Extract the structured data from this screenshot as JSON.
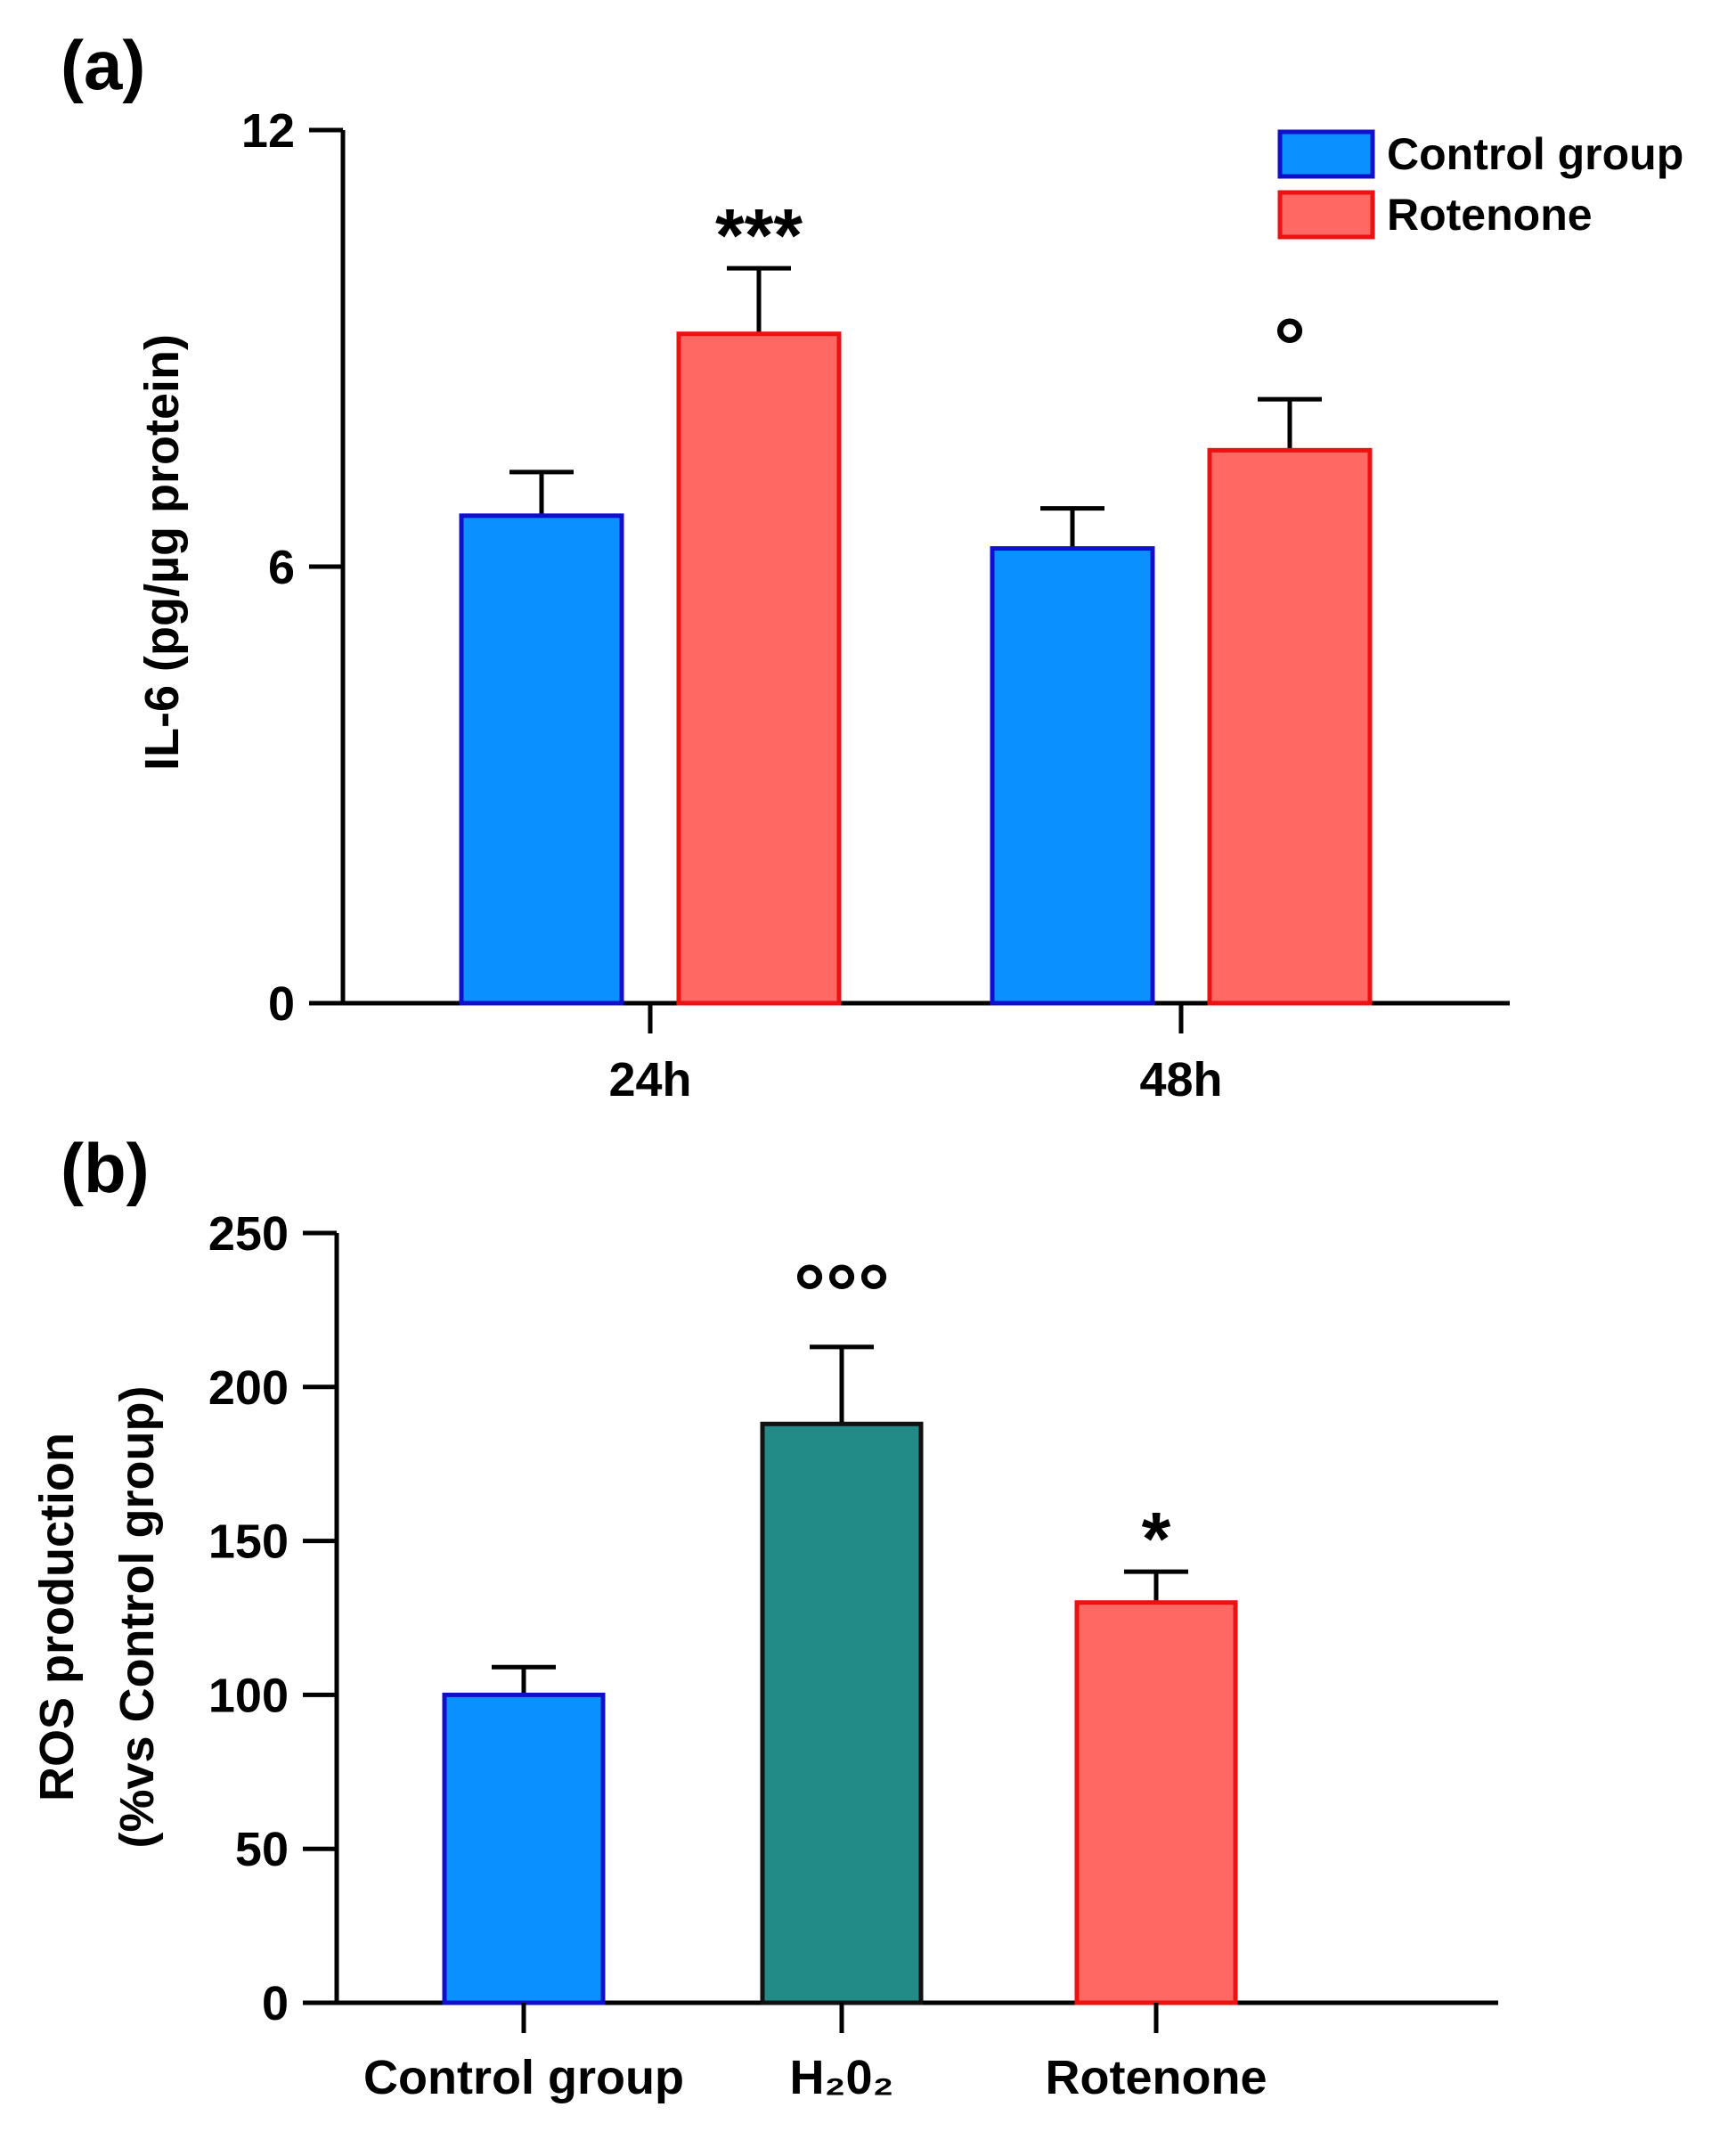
{
  "chart_data": [
    {
      "panel": "(a)",
      "type": "bar",
      "title": "",
      "xlabel": "",
      "ylabel": "IL-6 (pg/µg protein)",
      "ylim": [
        0,
        12
      ],
      "yticks": [
        "0",
        "6",
        "12"
      ],
      "categories": [
        "24h",
        "48h"
      ],
      "legend_position": "top-right",
      "series": [
        {
          "name": "Control group",
          "values": [
            6.7,
            6.25
          ],
          "errors": [
            0.6,
            0.55
          ],
          "fill": "#0a90ff",
          "stroke": "#1010cc"
        },
        {
          "name": "Rotenone",
          "values": [
            9.2,
            7.6
          ],
          "errors": [
            0.9,
            0.7
          ],
          "fill": "#ff6863",
          "stroke": "#ee1111"
        }
      ],
      "annotations": [
        {
          "category": 0,
          "series": 1,
          "text": "***"
        },
        {
          "category": 1,
          "series": 1,
          "text": "°"
        }
      ]
    },
    {
      "panel": "(b)",
      "type": "bar",
      "title": "",
      "xlabel": "",
      "ylabel": "ROS production",
      "ylabel2": "(%vs Control group)",
      "ylim": [
        0,
        250
      ],
      "yticks": [
        "0",
        "50",
        "100",
        "150",
        "200",
        "250"
      ],
      "categories": [
        "Control group",
        "H₂0₂",
        "Rotenone"
      ],
      "values": [
        100,
        188,
        130
      ],
      "errors": [
        9,
        25,
        10
      ],
      "fills": [
        "#0a90ff",
        "#238b87",
        "#ff6863"
      ],
      "strokes": [
        "#1010cc",
        "#111111",
        "#ee1111"
      ],
      "annotations": [
        {
          "category": 1,
          "text": "°°°"
        },
        {
          "category": 2,
          "text": "*"
        }
      ]
    }
  ]
}
